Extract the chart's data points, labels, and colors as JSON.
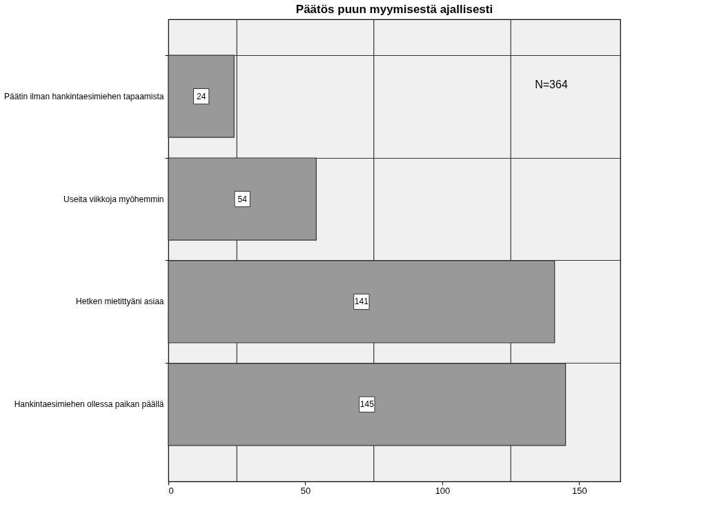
{
  "chart_data": {
    "type": "bar",
    "orientation": "horizontal",
    "title": "Päätös puun myymisestä ajallisesti",
    "categories": [
      "Päätin ilman hankintaesimiehen tapaamista",
      "Useita viikkoja myöhemmin",
      "Hetken mietittyäni asiaa",
      "Hankintaesimiehen ollessa paikan päällä"
    ],
    "values": [
      24,
      54,
      141,
      145
    ],
    "color": "#999999",
    "xlim": [
      0,
      165
    ],
    "xticks": [
      0,
      {
        "value": 25,
        "label": null
      },
      50,
      {
        "value": 75,
        "label": null
      },
      100,
      {
        "value": 125,
        "label": null
      },
      150
    ],
    "grid": true,
    "data_labels": true,
    "annotations": [
      "N=364"
    ]
  }
}
